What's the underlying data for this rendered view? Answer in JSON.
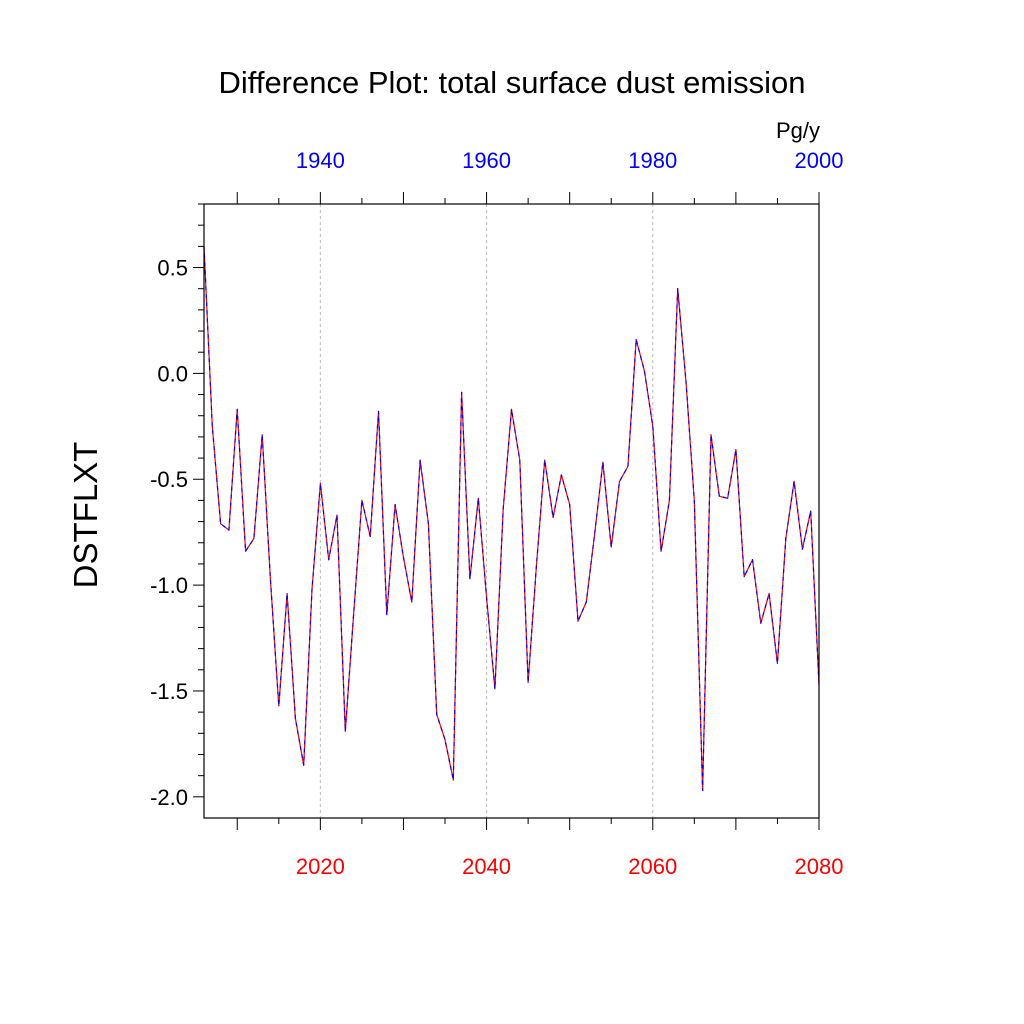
{
  "chart_data": {
    "type": "line",
    "title": "Difference Plot: total surface dust emission",
    "ylabel": "DSTFLXT",
    "units": "Pg/y",
    "xlim": [
      2006,
      2080
    ],
    "ylim": [
      -2.1,
      0.8
    ],
    "y_ticks": [
      {
        "value": 0.5,
        "label": "0.5"
      },
      {
        "value": 0.0,
        "label": "0.0"
      },
      {
        "value": -0.5,
        "label": "-0.5"
      },
      {
        "value": -1.0,
        "label": "-1.0"
      },
      {
        "value": -1.5,
        "label": "-1.5"
      },
      {
        "value": -2.0,
        "label": "-2.0"
      }
    ],
    "bottom_axis": {
      "color": "#ff0000",
      "ticks": [
        {
          "value": 2020,
          "label": "2020"
        },
        {
          "value": 2040,
          "label": "2040"
        },
        {
          "value": 2060,
          "label": "2060"
        },
        {
          "value": 2080,
          "label": "2080"
        }
      ]
    },
    "top_axis": {
      "color": "#0000ff",
      "offset_years": 80,
      "ticks": [
        {
          "value": 1940,
          "label": "1940"
        },
        {
          "value": 1960,
          "label": "1960"
        },
        {
          "value": 1980,
          "label": "1980"
        },
        {
          "value": 2000,
          "label": "2000"
        }
      ]
    },
    "gridlines_x": [
      2020,
      2040,
      2060
    ],
    "x": [
      2006,
      2007,
      2008,
      2009,
      2010,
      2011,
      2012,
      2013,
      2014,
      2015,
      2016,
      2017,
      2018,
      2019,
      2020,
      2021,
      2022,
      2023,
      2024,
      2025,
      2026,
      2027,
      2028,
      2029,
      2030,
      2031,
      2032,
      2033,
      2034,
      2035,
      2036,
      2037,
      2038,
      2039,
      2040,
      2041,
      2042,
      2043,
      2044,
      2045,
      2046,
      2047,
      2048,
      2049,
      2050,
      2051,
      2052,
      2053,
      2054,
      2055,
      2056,
      2057,
      2058,
      2059,
      2060,
      2061,
      2062,
      2063,
      2064,
      2065,
      2066,
      2067,
      2068,
      2069,
      2070,
      2071,
      2072,
      2073,
      2074,
      2075,
      2076,
      2077,
      2078,
      2079,
      2080
    ],
    "series": [
      {
        "name": "difference",
        "color": "#ff0000",
        "dash_color": "#0000ff",
        "values": [
          0.6,
          -0.25,
          -0.71,
          -0.74,
          -0.17,
          -0.84,
          -0.78,
          -0.29,
          -0.98,
          -1.57,
          -1.04,
          -1.63,
          -1.85,
          -1.02,
          -0.52,
          -0.88,
          -0.67,
          -1.69,
          -1.14,
          -0.6,
          -0.77,
          -0.18,
          -1.14,
          -0.62,
          -0.87,
          -1.08,
          -0.41,
          -0.71,
          -1.61,
          -1.73,
          -1.92,
          -0.09,
          -0.97,
          -0.59,
          -1.06,
          -1.49,
          -0.64,
          -0.17,
          -0.41,
          -1.46,
          -0.91,
          -0.41,
          -0.68,
          -0.48,
          -0.62,
          -1.17,
          -1.08,
          -0.76,
          -0.42,
          -0.82,
          -0.51,
          -0.44,
          0.16,
          0.01,
          -0.25,
          -0.84,
          -0.6,
          0.4,
          -0.04,
          -0.6,
          -1.97,
          -0.29,
          -0.58,
          -0.59,
          -0.36,
          -0.96,
          -0.88,
          -1.18,
          -1.04,
          -1.37,
          -0.78,
          -0.51,
          -0.83,
          -0.65,
          -1.47
        ]
      }
    ]
  }
}
